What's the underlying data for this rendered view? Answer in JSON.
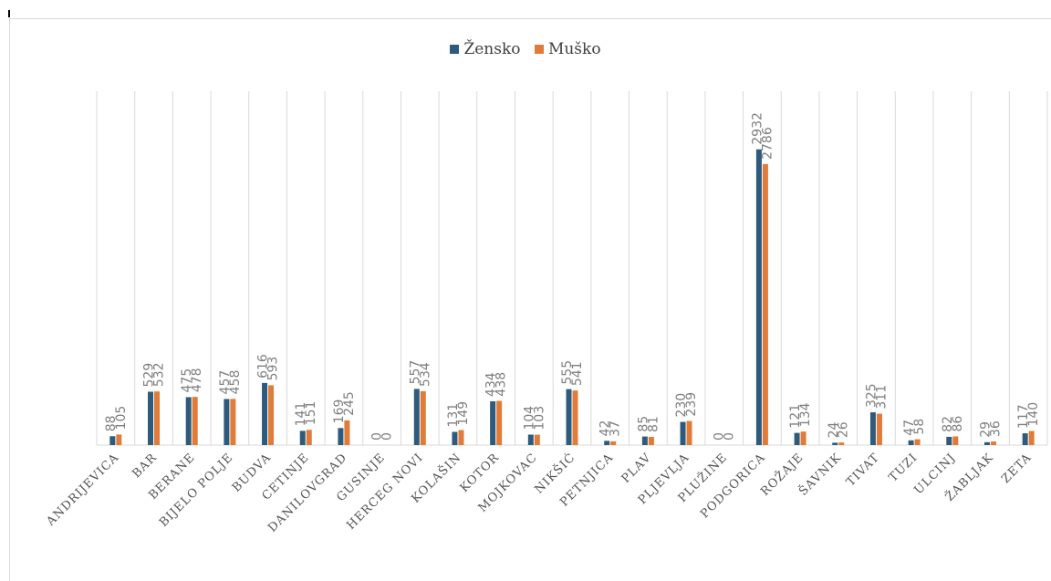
{
  "chart_data": {
    "type": "bar",
    "categories": [
      "ANDRIJEVICA",
      "BAR",
      "BERANE",
      "BIJELO POLJE",
      "BUDVA",
      "CETINJE",
      "DANILOVGRAD",
      "GUSINJE",
      "HERCEG NOVI",
      "KOLAŠIN",
      "KOTOR",
      "MOJKOVAC",
      "NIKŠIĆ",
      "PETNJICA",
      "PLAV",
      "PLJEVLJA",
      "PLUŽINE",
      "PODGORICA",
      "ROŽAJE",
      "ŠAVNIK",
      "TIVAT",
      "TUZI",
      "ULCINJ",
      "ŽABLJAK",
      "ZETA"
    ],
    "series": [
      {
        "name": "Žensko",
        "color": "#2e5a7c",
        "values": [
          88,
          529,
          475,
          457,
          616,
          141,
          169,
          0,
          557,
          131,
          434,
          104,
          555,
          42,
          85,
          230,
          0,
          2932,
          121,
          24,
          325,
          47,
          82,
          29,
          117
        ]
      },
      {
        "name": "Muško",
        "color": "#e07b39",
        "values": [
          105,
          532,
          478,
          458,
          593,
          151,
          245,
          0,
          534,
          149,
          438,
          103,
          541,
          37,
          81,
          239,
          0,
          2786,
          134,
          26,
          311,
          58,
          86,
          36,
          140
        ]
      }
    ],
    "ylim": [
      0,
      3300
    ],
    "grid": "vertical-category-lines",
    "legend_position": "top-center"
  }
}
